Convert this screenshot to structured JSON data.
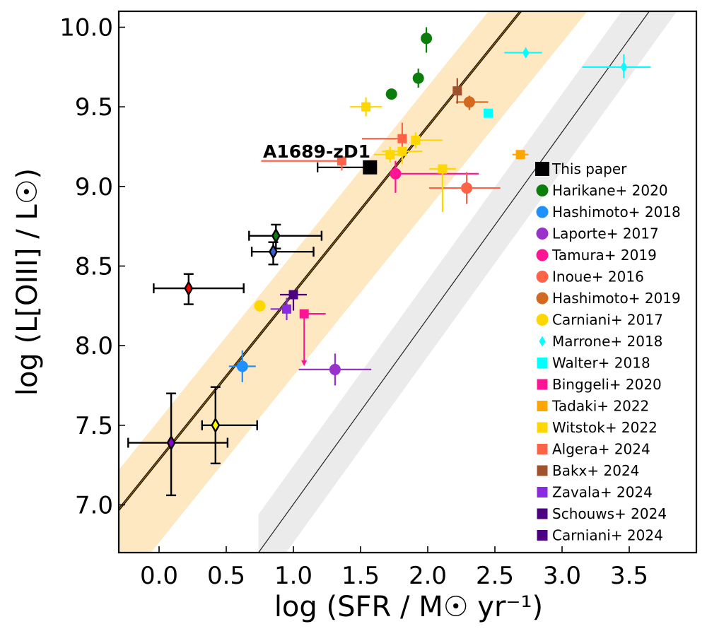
{
  "chart_data": {
    "type": "scatter",
    "xlabel": "log (SFR / M☉ yr⁻¹)",
    "ylabel": "log (L[OIII] / L☉)",
    "xlim": [
      -0.3,
      4.0
    ],
    "ylim": [
      6.7,
      10.1
    ],
    "xticks": [
      0.0,
      0.5,
      1.0,
      1.5,
      2.0,
      2.5,
      3.0,
      3.5
    ],
    "yticks": [
      7.0,
      7.5,
      8.0,
      8.5,
      9.0,
      9.5,
      10.0
    ],
    "xtick_labels": [
      "0.0",
      "0.5",
      "1.0",
      "1.5",
      "2.0",
      "2.5",
      "3.0",
      "3.5"
    ],
    "ytick_labels": [
      "7.0",
      "7.5",
      "8.0",
      "8.5",
      "9.0",
      "9.5",
      "10.0"
    ],
    "annotation": {
      "text": "A1689-zD1",
      "x": 1.57,
      "y": 9.13
    },
    "relations": [
      {
        "name": "Best-fit relation",
        "color": "#8b5a00",
        "edge": "#000000",
        "band_color": "#fde8c2",
        "points": [
          [
            -0.3,
            6.97
          ],
          [
            4.0,
            11.47
          ]
        ],
        "band": [
          0.25,
          0.52
        ]
      },
      {
        "name": "Local relation",
        "color": "#222222",
        "band_color": "#ebebeb",
        "points": [
          [
            0.74,
            6.7
          ],
          [
            4.0,
            10.51
          ]
        ],
        "band": [
          0.24,
          0.24
        ]
      }
    ],
    "legend_position": "right",
    "series": [
      {
        "name": "This paper",
        "color": "#000000",
        "marker": "square",
        "size": 20,
        "points": [
          {
            "x": 1.57,
            "y": 9.12,
            "xerr": [
              0.39,
              0.0
            ],
            "yerr": [
              0,
              0
            ]
          }
        ]
      },
      {
        "name": "Harikane+ 2020",
        "color": "#0a7d0a",
        "marker": "circle",
        "size": 16,
        "points": [
          {
            "x": 1.73,
            "y": 9.58,
            "xerr": [
              0,
              0
            ],
            "yerr": [
              0,
              0
            ]
          },
          {
            "x": 1.93,
            "y": 9.68,
            "xerr": [
              0,
              0
            ],
            "yerr": [
              0.06,
              0.06
            ]
          },
          {
            "x": 1.99,
            "y": 9.93,
            "xerr": [
              0,
              0
            ],
            "yerr": [
              0.09,
              0.07
            ]
          }
        ]
      },
      {
        "name": "Hashimoto+ 2018",
        "color": "#1e90ff",
        "marker": "circle",
        "size": 16,
        "points": [
          {
            "x": 0.62,
            "y": 7.87,
            "xerr": [
              0.1,
              0.1
            ],
            "yerr": [
              0.1,
              0.1
            ]
          }
        ]
      },
      {
        "name": "Laporte+ 2017",
        "color": "#9932cc",
        "marker": "circle",
        "size": 16,
        "points": [
          {
            "x": 1.31,
            "y": 7.85,
            "xerr": [
              0.27,
              0.27
            ],
            "yerr": [
              0.1,
              0.1
            ]
          }
        ]
      },
      {
        "name": "Tamura+ 2019",
        "color": "#ff1493",
        "marker": "circle",
        "size": 16,
        "points": [
          {
            "x": 1.76,
            "y": 9.08,
            "xerr": [
              0.0,
              0.62
            ],
            "yerr": [
              0.12,
              0.08
            ]
          }
        ]
      },
      {
        "name": "Inoue+ 2016",
        "color": "#ff6347",
        "marker": "circle",
        "size": 16,
        "points": [
          {
            "x": 2.29,
            "y": 8.99,
            "xerr": [
              0.28,
              0.25
            ],
            "yerr": [
              0.1,
              0.1
            ]
          }
        ]
      },
      {
        "name": "Hashimoto+ 2019",
        "color": "#d2691e",
        "marker": "circle",
        "size": 16,
        "points": [
          {
            "x": 2.31,
            "y": 9.53,
            "xerr": [
              0.1,
              0.14
            ],
            "yerr": [
              0.05,
              0.04
            ]
          }
        ]
      },
      {
        "name": "Carniani+ 2017",
        "color": "#ffd700",
        "marker": "circle",
        "size": 16,
        "points": [
          {
            "x": 0.75,
            "y": 8.25,
            "xerr": [
              0.0,
              0.0
            ],
            "yerr": [
              0.02,
              0.02
            ]
          }
        ]
      },
      {
        "name": "Marrone+ 2018",
        "color": "#00ffff",
        "marker": "thin_diamond",
        "size": 16,
        "points": [
          {
            "x": 2.73,
            "y": 9.84,
            "xerr": [
              0.16,
              0.12
            ],
            "yerr": [
              0.03,
              0.02
            ]
          },
          {
            "x": 3.46,
            "y": 9.75,
            "xerr": [
              0.31,
              0.2
            ],
            "yerr": [
              0.07,
              0.08
            ]
          }
        ]
      },
      {
        "name": "Walter+ 2018",
        "color": "#00ffff",
        "marker": "square",
        "size": 13,
        "points": [
          {
            "x": 2.45,
            "y": 9.46,
            "xerr": [
              0,
              0
            ],
            "yerr": [
              0,
              0
            ]
          }
        ]
      },
      {
        "name": "Binggeli+ 2020",
        "color": "#ff1493",
        "marker": "square",
        "size": 13,
        "points": [
          {
            "x": 1.08,
            "y": 8.2,
            "xerr": [
              0.0,
              0.16
            ],
            "yerr": [
              0,
              0
            ],
            "upper_limit_y": 0.32
          }
        ]
      },
      {
        "name": "Tadaki+ 2022",
        "color": "#ffa500",
        "marker": "square",
        "size": 13,
        "points": [
          {
            "x": 2.69,
            "y": 9.2,
            "xerr": [
              0.06,
              0.06
            ],
            "yerr": [
              0,
              0
            ]
          }
        ]
      },
      {
        "name": "Witstok+ 2022",
        "color": "#ffd700",
        "marker": "square",
        "size": 13,
        "points": [
          {
            "x": 1.54,
            "y": 9.5,
            "xerr": [
              0.12,
              0.12
            ],
            "yerr": [
              0.06,
              0.06
            ]
          },
          {
            "x": 1.72,
            "y": 9.2,
            "xerr": [
              0.12,
              0.12
            ],
            "yerr": [
              0.05,
              0.05
            ]
          },
          {
            "x": 1.81,
            "y": 9.22,
            "xerr": [
              0.15,
              0.15
            ],
            "yerr": [
              0.08,
              0.08
            ]
          },
          {
            "x": 1.91,
            "y": 9.29,
            "xerr": [
              0.0,
              0.2
            ],
            "yerr": [
              0.05,
              0.05
            ]
          },
          {
            "x": 2.11,
            "y": 9.11,
            "xerr": [
              0.1,
              0.1
            ],
            "yerr": [
              0.27,
              0.0
            ]
          }
        ]
      },
      {
        "name": "Algera+ 2024",
        "color": "#ff6347",
        "marker": "square",
        "size": 13,
        "points": [
          {
            "x": 1.36,
            "y": 9.16,
            "xerr": [
              0.6,
              0.0
            ],
            "yerr": [
              0.06,
              0.0
            ]
          },
          {
            "x": 1.81,
            "y": 9.3,
            "xerr": [
              0.3,
              0.0
            ],
            "yerr": [
              0.05,
              0.1
            ]
          }
        ]
      },
      {
        "name": "Bakx+ 2024",
        "color": "#a0522d",
        "marker": "square",
        "size": 13,
        "points": [
          {
            "x": 2.22,
            "y": 9.6,
            "xerr": [
              0,
              0
            ],
            "yerr": [
              0.08,
              0.08
            ]
          }
        ]
      },
      {
        "name": "Zavala+ 2024",
        "color": "#8a2be2",
        "marker": "square",
        "size": 13,
        "points": [
          {
            "x": 0.95,
            "y": 8.23,
            "xerr": [
              0.12,
              0.0
            ],
            "yerr": [
              0.07,
              0.07
            ]
          }
        ]
      },
      {
        "name": "Schouws+ 2024",
        "color": "#4b0082",
        "marker": "square",
        "size": 13,
        "points": [
          {
            "x": 1.0,
            "y": 8.32,
            "xerr": [
              0.1,
              0.1
            ],
            "yerr": [
              0.1,
              0.0
            ]
          }
        ]
      },
      {
        "name": "Carniani+ 2024",
        "color": "#4b0082",
        "marker": "square",
        "size": 13,
        "points": []
      },
      {
        "name": "Highlighted red",
        "color": "#ff0000",
        "marker": "big_diamond",
        "size": 17,
        "legend": false,
        "points": [
          {
            "x": 0.22,
            "y": 8.36,
            "xerr": [
              0.26,
              0.41
            ],
            "yerr": [
              0.1,
              0.09
            ]
          }
        ]
      },
      {
        "name": "Highlighted green",
        "color": "#0a7d0a",
        "marker": "big_diamond",
        "size": 17,
        "legend": false,
        "points": [
          {
            "x": 0.87,
            "y": 8.69,
            "xerr": [
              0.2,
              0.34
            ],
            "yerr": [
              0.08,
              0.07
            ]
          }
        ]
      },
      {
        "name": "Highlighted blue",
        "color": "#3a5fcd",
        "marker": "big_diamond",
        "size": 17,
        "legend": false,
        "points": [
          {
            "x": 0.85,
            "y": 8.59,
            "xerr": [
              0.16,
              0.3
            ],
            "yerr": [
              0.08,
              0.06
            ]
          }
        ]
      },
      {
        "name": "Highlighted purple",
        "color": "#8b00d6",
        "marker": "big_diamond",
        "size": 17,
        "legend": false,
        "points": [
          {
            "x": 0.09,
            "y": 7.39,
            "xerr": [
              0.32,
              0.42
            ],
            "yerr": [
              0.33,
              0.31
            ]
          }
        ]
      },
      {
        "name": "Highlighted yellow",
        "color": "#ffff00",
        "marker": "big_diamond",
        "size": 17,
        "legend": false,
        "points": [
          {
            "x": 0.42,
            "y": 7.5,
            "xerr": [
              0.1,
              0.31
            ],
            "yerr": [
              0.24,
              0.24
            ]
          }
        ]
      }
    ]
  }
}
